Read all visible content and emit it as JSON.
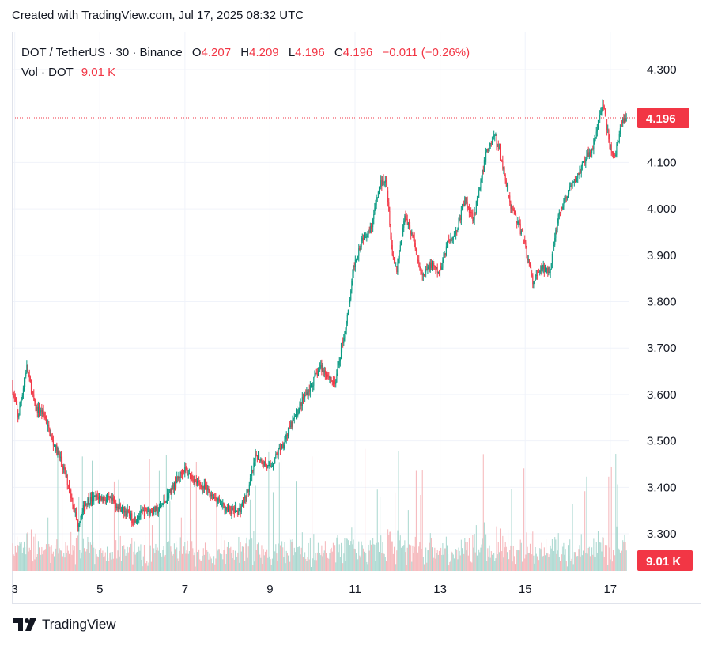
{
  "header": {
    "created_text": "Created with TradingView.com, Jul 17, 2025 08:32 UTC"
  },
  "legend": {
    "symbol": "DOT / TetherUS · 30 · Binance",
    "open_label": "O",
    "open_value": "4.207",
    "high_label": "H",
    "high_value": "4.209",
    "low_label": "L",
    "low_value": "4.196",
    "close_label": "C",
    "close_value": "4.196",
    "change": "−0.011 (−0.26%)",
    "vol_label": "Vol · DOT",
    "vol_value": "9.01 K"
  },
  "footer": {
    "brand": "TradingView"
  },
  "colors": {
    "up": "#089981",
    "down": "#f23645",
    "vol_up": "#a9d7cf",
    "vol_down": "#f5b4b8",
    "grid": "#f0f3fa",
    "text": "#131722"
  },
  "chart_data": {
    "type": "candlestick",
    "y_ticks": [
      "4.300",
      "4.100",
      "4.000",
      "3.900",
      "3.800",
      "3.700",
      "3.600",
      "3.500",
      "3.400",
      "3.300"
    ],
    "y_tick_values": [
      4.3,
      4.1,
      4.0,
      3.9,
      3.8,
      3.7,
      3.6,
      3.5,
      3.4,
      3.3
    ],
    "ylim": [
      3.22,
      4.38
    ],
    "x_ticks": [
      "3",
      "5",
      "7",
      "9",
      "11",
      "13",
      "15",
      "17"
    ],
    "x_tick_days": [
      3,
      5,
      7,
      9,
      11,
      13,
      15,
      17
    ],
    "xlim": [
      2.95,
      17.45
    ],
    "last_price": {
      "label": "4.196",
      "value": 4.196
    },
    "volume_label": "9.01 K",
    "price_path": [
      [
        2.95,
        3.62
      ],
      [
        3.1,
        3.55
      ],
      [
        3.3,
        3.66
      ],
      [
        3.5,
        3.57
      ],
      [
        3.7,
        3.56
      ],
      [
        3.9,
        3.5
      ],
      [
        4.1,
        3.46
      ],
      [
        4.3,
        3.4
      ],
      [
        4.4,
        3.36
      ],
      [
        4.5,
        3.32
      ],
      [
        4.7,
        3.37
      ],
      [
        5.0,
        3.38
      ],
      [
        5.3,
        3.37
      ],
      [
        5.6,
        3.35
      ],
      [
        5.8,
        3.33
      ],
      [
        6.1,
        3.35
      ],
      [
        6.4,
        3.35
      ],
      [
        6.6,
        3.38
      ],
      [
        6.8,
        3.41
      ],
      [
        7.0,
        3.44
      ],
      [
        7.3,
        3.41
      ],
      [
        7.6,
        3.39
      ],
      [
        7.9,
        3.36
      ],
      [
        8.1,
        3.35
      ],
      [
        8.3,
        3.35
      ],
      [
        8.5,
        3.39
      ],
      [
        8.7,
        3.47
      ],
      [
        9.0,
        3.44
      ],
      [
        9.3,
        3.49
      ],
      [
        9.6,
        3.55
      ],
      [
        9.8,
        3.59
      ],
      [
        10.0,
        3.62
      ],
      [
        10.2,
        3.66
      ],
      [
        10.4,
        3.64
      ],
      [
        10.55,
        3.62
      ],
      [
        10.7,
        3.7
      ],
      [
        10.85,
        3.77
      ],
      [
        11.0,
        3.88
      ],
      [
        11.2,
        3.94
      ],
      [
        11.4,
        3.96
      ],
      [
        11.6,
        4.05
      ],
      [
        11.75,
        4.07
      ],
      [
        11.9,
        3.9
      ],
      [
        12.0,
        3.87
      ],
      [
        12.2,
        3.99
      ],
      [
        12.4,
        3.93
      ],
      [
        12.6,
        3.85
      ],
      [
        12.8,
        3.88
      ],
      [
        13.0,
        3.86
      ],
      [
        13.2,
        3.93
      ],
      [
        13.4,
        3.95
      ],
      [
        13.6,
        4.02
      ],
      [
        13.8,
        3.98
      ],
      [
        13.95,
        4.04
      ],
      [
        14.1,
        4.12
      ],
      [
        14.3,
        4.16
      ],
      [
        14.5,
        4.09
      ],
      [
        14.7,
        4.0
      ],
      [
        14.85,
        3.97
      ],
      [
        15.0,
        3.93
      ],
      [
        15.2,
        3.84
      ],
      [
        15.4,
        3.87
      ],
      [
        15.6,
        3.87
      ],
      [
        15.8,
        3.98
      ],
      [
        16.0,
        4.03
      ],
      [
        16.2,
        4.06
      ],
      [
        16.4,
        4.1
      ],
      [
        16.6,
        4.13
      ],
      [
        16.75,
        4.19
      ],
      [
        16.85,
        4.23
      ],
      [
        17.0,
        4.14
      ],
      [
        17.1,
        4.11
      ],
      [
        17.2,
        4.14
      ],
      [
        17.3,
        4.19
      ],
      [
        17.4,
        4.196
      ]
    ]
  }
}
